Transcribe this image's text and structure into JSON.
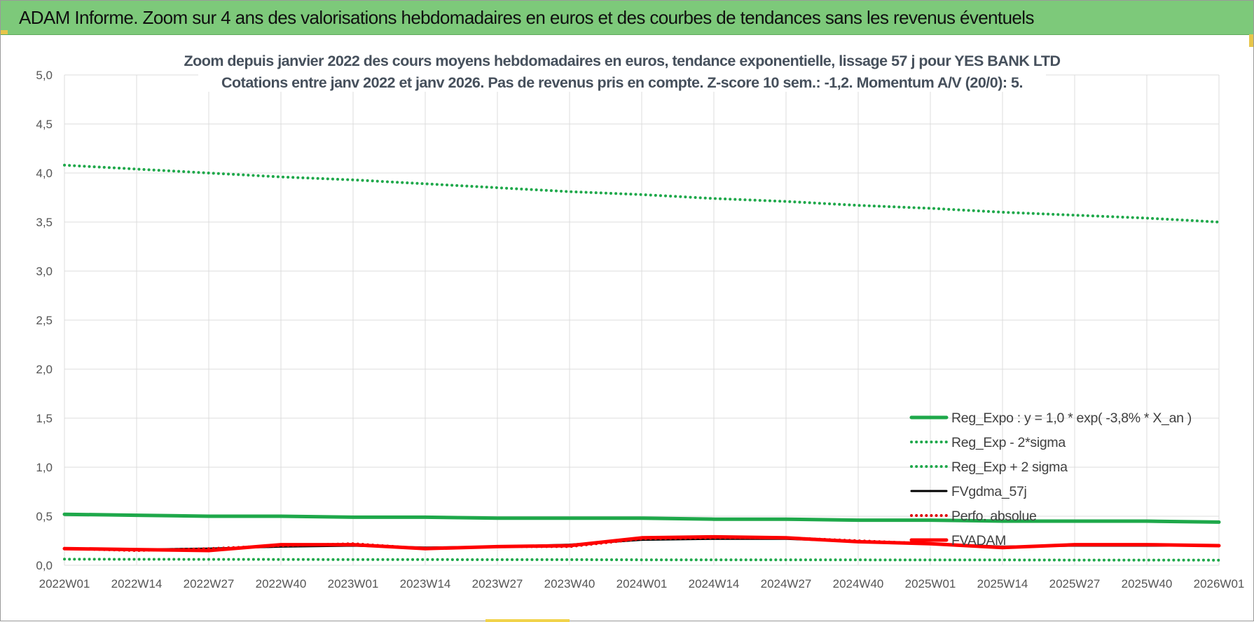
{
  "banner": {
    "title": "ADAM Informe. Zoom sur 4 ans des valorisations hebdomadaires en euros et des courbes de tendances sans les revenus éventuels"
  },
  "chart_data": {
    "type": "line",
    "title_line1": "Zoom depuis janvier 2022 des cours moyens hebdomadaires en euros, tendance exponentielle, lissage 57 j pour YES BANK LTD",
    "title_line2": "Cotations entre janv 2022 et janv 2026. Pas de revenus pris en compte. Z-score 10 sem.: -1,2. Momentum A/V (20/0): 5.",
    "xlabel": "",
    "ylabel": "",
    "ylim": [
      0,
      5
    ],
    "yticks": [
      "0,0",
      "0,5",
      "1,0",
      "1,5",
      "2,0",
      "2,5",
      "3,0",
      "3,5",
      "4,0",
      "4,5",
      "5,0"
    ],
    "categories": [
      "2022W01",
      "2022W14",
      "2022W27",
      "2022W40",
      "2023W01",
      "2023W14",
      "2023W27",
      "2023W40",
      "2024W01",
      "2024W14",
      "2024W27",
      "2024W40",
      "2025W01",
      "2025W14",
      "2025W27",
      "2025W40",
      "2026W01"
    ],
    "grid": true,
    "legend_position": "bottom-right",
    "series": [
      {
        "name": "Reg_Expo : y = 1,0 * exp( -3,8% *  X_an )",
        "color": "#1ea84a",
        "style": "solid",
        "values": [
          0.52,
          0.51,
          0.5,
          0.5,
          0.49,
          0.49,
          0.48,
          0.48,
          0.48,
          0.47,
          0.47,
          0.46,
          0.46,
          0.45,
          0.45,
          0.45,
          0.44
        ]
      },
      {
        "name": "Reg_Exp - 2*sigma",
        "color": "#1ea84a",
        "style": "dotted",
        "values": [
          0.062,
          0.061,
          0.06,
          0.059,
          0.058,
          0.058,
          0.057,
          0.057,
          0.056,
          0.056,
          0.055,
          0.055,
          0.054,
          0.054,
          0.053,
          0.053,
          0.052
        ]
      },
      {
        "name": "Reg_Exp + 2 sigma",
        "color": "#1ea84a",
        "style": "dotted",
        "values": [
          4.08,
          4.04,
          4.0,
          3.96,
          3.93,
          3.89,
          3.85,
          3.81,
          3.78,
          3.74,
          3.71,
          3.67,
          3.64,
          3.6,
          3.57,
          3.54,
          3.5
        ]
      },
      {
        "name": "FVgdma_57j",
        "color": "#000000",
        "style": "solid",
        "values": [
          0.17,
          0.16,
          0.17,
          0.19,
          0.2,
          0.18,
          0.19,
          0.21,
          0.26,
          0.27,
          0.27,
          0.24,
          0.22,
          0.19,
          0.2,
          0.2,
          0.2
        ]
      },
      {
        "name": "Perfo. absolue",
        "color": "#e00000",
        "style": "dotted",
        "values": [
          0.17,
          0.15,
          0.17,
          0.2,
          0.22,
          0.17,
          0.19,
          0.19,
          0.27,
          0.28,
          0.28,
          0.25,
          0.22,
          0.18,
          0.21,
          0.21,
          0.2
        ]
      },
      {
        "name": "FVADAM",
        "color": "#ff0000",
        "style": "solid",
        "values": [
          0.17,
          0.16,
          0.15,
          0.21,
          0.21,
          0.17,
          0.19,
          0.2,
          0.28,
          0.29,
          0.28,
          0.24,
          0.22,
          0.18,
          0.21,
          0.21,
          0.2
        ]
      }
    ]
  }
}
